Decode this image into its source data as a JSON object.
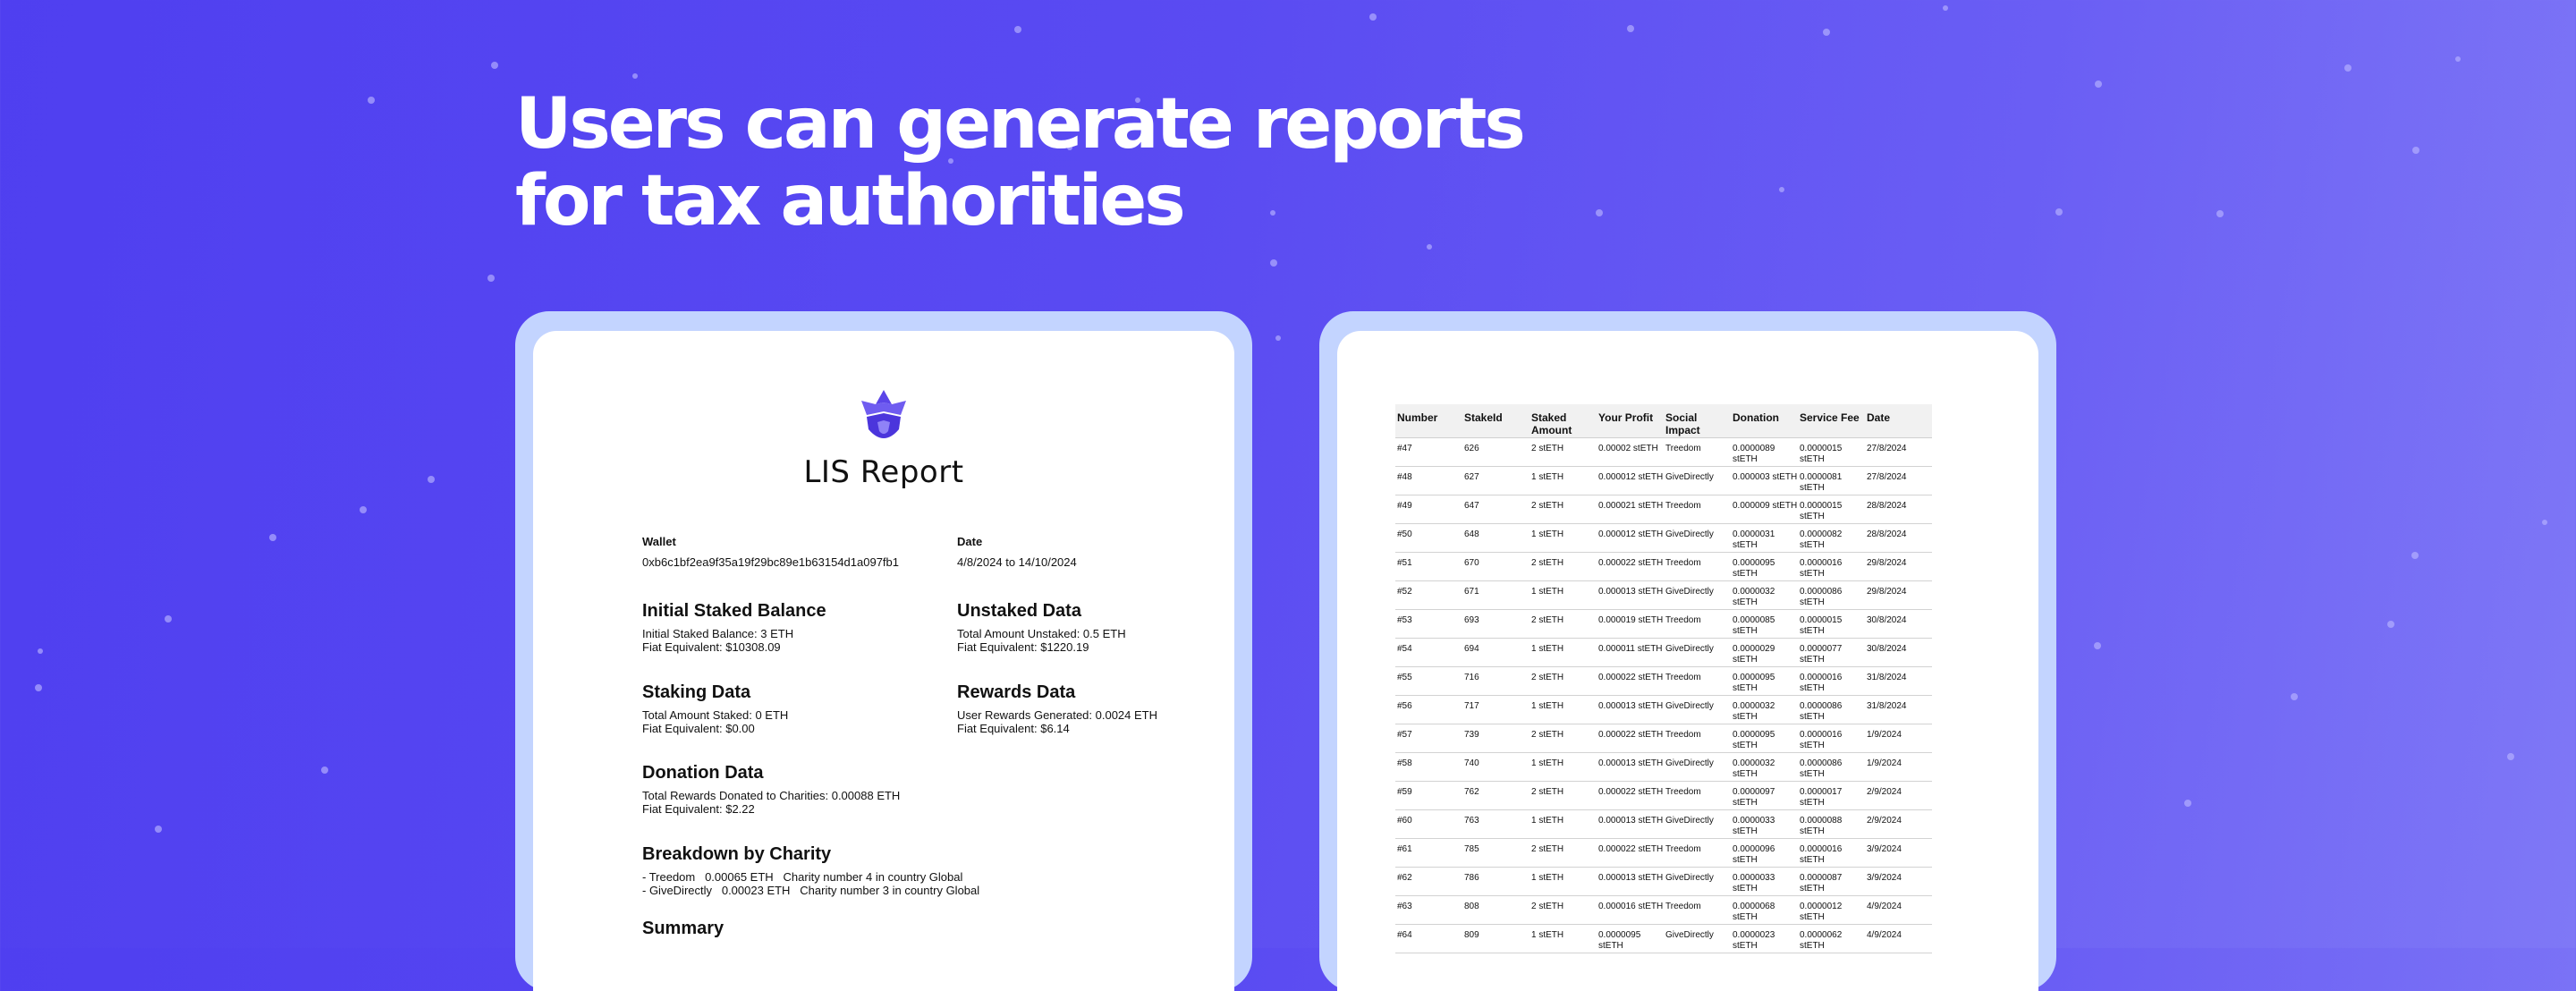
{
  "headline": {
    "line1": "Users can generate reports",
    "line2": "for tax authorities"
  },
  "colors": {
    "background_start": "#4f3ff0",
    "background_end": "#7f78f6",
    "frame": "#c3d4ff",
    "logo": "#5b45e8"
  },
  "report": {
    "logo_icon": "lis-diamond-logo-icon",
    "title": "LIS Report",
    "wallet_label": "Wallet",
    "wallet_value": "0xb6c1bf2ea9f35a19f29bc89e1b63154d1a097fb1",
    "date_label": "Date",
    "date_value": "4/8/2024 to 14/10/2024",
    "sections": {
      "initial": {
        "title": "Initial Staked Balance",
        "lines": [
          "Initial Staked Balance: 3 ETH",
          "Fiat Equivalent: $10308.09"
        ]
      },
      "unstaked": {
        "title": "Unstaked Data",
        "lines": [
          "Total Amount Unstaked: 0.5 ETH",
          "Fiat Equivalent: $1220.19"
        ]
      },
      "staking": {
        "title": "Staking Data",
        "lines": [
          "Total Amount Staked: 0 ETH",
          "Fiat Equivalent: $0.00"
        ]
      },
      "rewards": {
        "title": "Rewards Data",
        "lines": [
          "User Rewards Generated: 0.0024 ETH",
          "Fiat Equivalent: $6.14"
        ]
      },
      "donation": {
        "title": "Donation Data",
        "lines": [
          "Total Rewards Donated to Charities: 0.00088 ETH",
          "Fiat Equivalent: $2.22"
        ]
      },
      "breakdown": {
        "title": "Breakdown by Charity",
        "lines": [
          "- Treedom   0.00065 ETH   Charity number 4 in country Global",
          "- GiveDirectly   0.00023 ETH   Charity number 3 in country Global"
        ]
      },
      "summary": {
        "title": "Summary"
      }
    }
  },
  "table": {
    "headers": [
      "Number",
      "StakeId",
      "Staked Amount",
      "Your Profit",
      "Social Impact",
      "Donation",
      "Service Fee",
      "Date"
    ],
    "rows": [
      [
        "#47",
        "626",
        "2 stETH",
        "0.00002 stETH",
        "Treedom",
        "0.0000089 stETH",
        "0.0000015 stETH",
        "27/8/2024"
      ],
      [
        "#48",
        "627",
        "1 stETH",
        "0.000012 stETH",
        "GiveDirectly",
        "0.000003 stETH",
        "0.0000081 stETH",
        "27/8/2024"
      ],
      [
        "#49",
        "647",
        "2 stETH",
        "0.000021 stETH",
        "Treedom",
        "0.000009 stETH",
        "0.0000015 stETH",
        "28/8/2024"
      ],
      [
        "#50",
        "648",
        "1 stETH",
        "0.000012 stETH",
        "GiveDirectly",
        "0.0000031 stETH",
        "0.0000082 stETH",
        "28/8/2024"
      ],
      [
        "#51",
        "670",
        "2 stETH",
        "0.000022 stETH",
        "Treedom",
        "0.0000095 stETH",
        "0.0000016 stETH",
        "29/8/2024"
      ],
      [
        "#52",
        "671",
        "1 stETH",
        "0.000013 stETH",
        "GiveDirectly",
        "0.0000032 stETH",
        "0.0000086 stETH",
        "29/8/2024"
      ],
      [
        "#53",
        "693",
        "2 stETH",
        "0.000019 stETH",
        "Treedom",
        "0.0000085 stETH",
        "0.0000015 stETH",
        "30/8/2024"
      ],
      [
        "#54",
        "694",
        "1 stETH",
        "0.000011 stETH",
        "GiveDirectly",
        "0.0000029 stETH",
        "0.0000077 stETH",
        "30/8/2024"
      ],
      [
        "#55",
        "716",
        "2 stETH",
        "0.000022 stETH",
        "Treedom",
        "0.0000095 stETH",
        "0.0000016 stETH",
        "31/8/2024"
      ],
      [
        "#56",
        "717",
        "1 stETH",
        "0.000013 stETH",
        "GiveDirectly",
        "0.0000032 stETH",
        "0.0000086 stETH",
        "31/8/2024"
      ],
      [
        "#57",
        "739",
        "2 stETH",
        "0.000022 stETH",
        "Treedom",
        "0.0000095 stETH",
        "0.0000016 stETH",
        "1/9/2024"
      ],
      [
        "#58",
        "740",
        "1 stETH",
        "0.000013 stETH",
        "GiveDirectly",
        "0.0000032 stETH",
        "0.0000086 stETH",
        "1/9/2024"
      ],
      [
        "#59",
        "762",
        "2 stETH",
        "0.000022 stETH",
        "Treedom",
        "0.0000097 stETH",
        "0.0000017 stETH",
        "2/9/2024"
      ],
      [
        "#60",
        "763",
        "1 stETH",
        "0.000013 stETH",
        "GiveDirectly",
        "0.0000033 stETH",
        "0.0000088 stETH",
        "2/9/2024"
      ],
      [
        "#61",
        "785",
        "2 stETH",
        "0.000022 stETH",
        "Treedom",
        "0.0000096 stETH",
        "0.0000016 stETH",
        "3/9/2024"
      ],
      [
        "#62",
        "786",
        "1 stETH",
        "0.000013 stETH",
        "GiveDirectly",
        "0.0000033 stETH",
        "0.0000087 stETH",
        "3/9/2024"
      ],
      [
        "#63",
        "808",
        "2 stETH",
        "0.000016 stETH",
        "Treedom",
        "0.0000068 stETH",
        "0.0000012 stETH",
        "4/9/2024"
      ],
      [
        "#64",
        "809",
        "1 stETH",
        "0.0000095 stETH",
        "GiveDirectly",
        "0.0000023 stETH",
        "0.0000062 stETH",
        "4/9/2024"
      ]
    ]
  }
}
